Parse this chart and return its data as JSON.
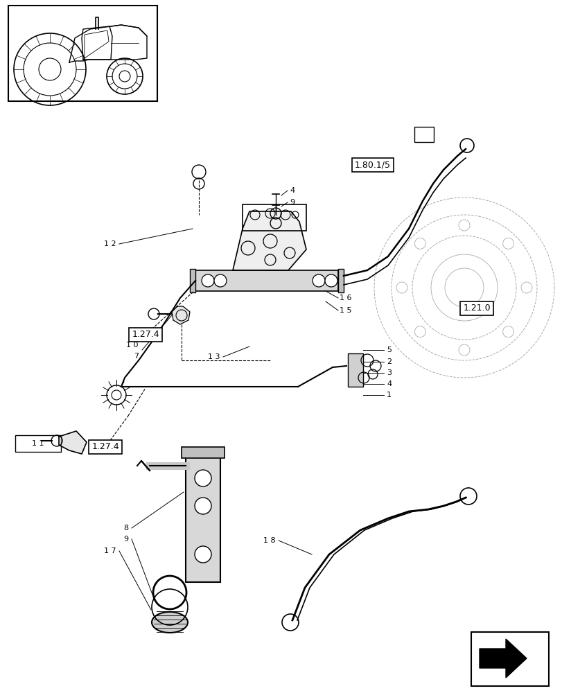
{
  "bg_color": "#ffffff",
  "fig_width": 8.12,
  "fig_height": 10.0,
  "dpi": 100,
  "line_color": "#000000",
  "label_fontsize": 8,
  "ref_fontsize": 9
}
